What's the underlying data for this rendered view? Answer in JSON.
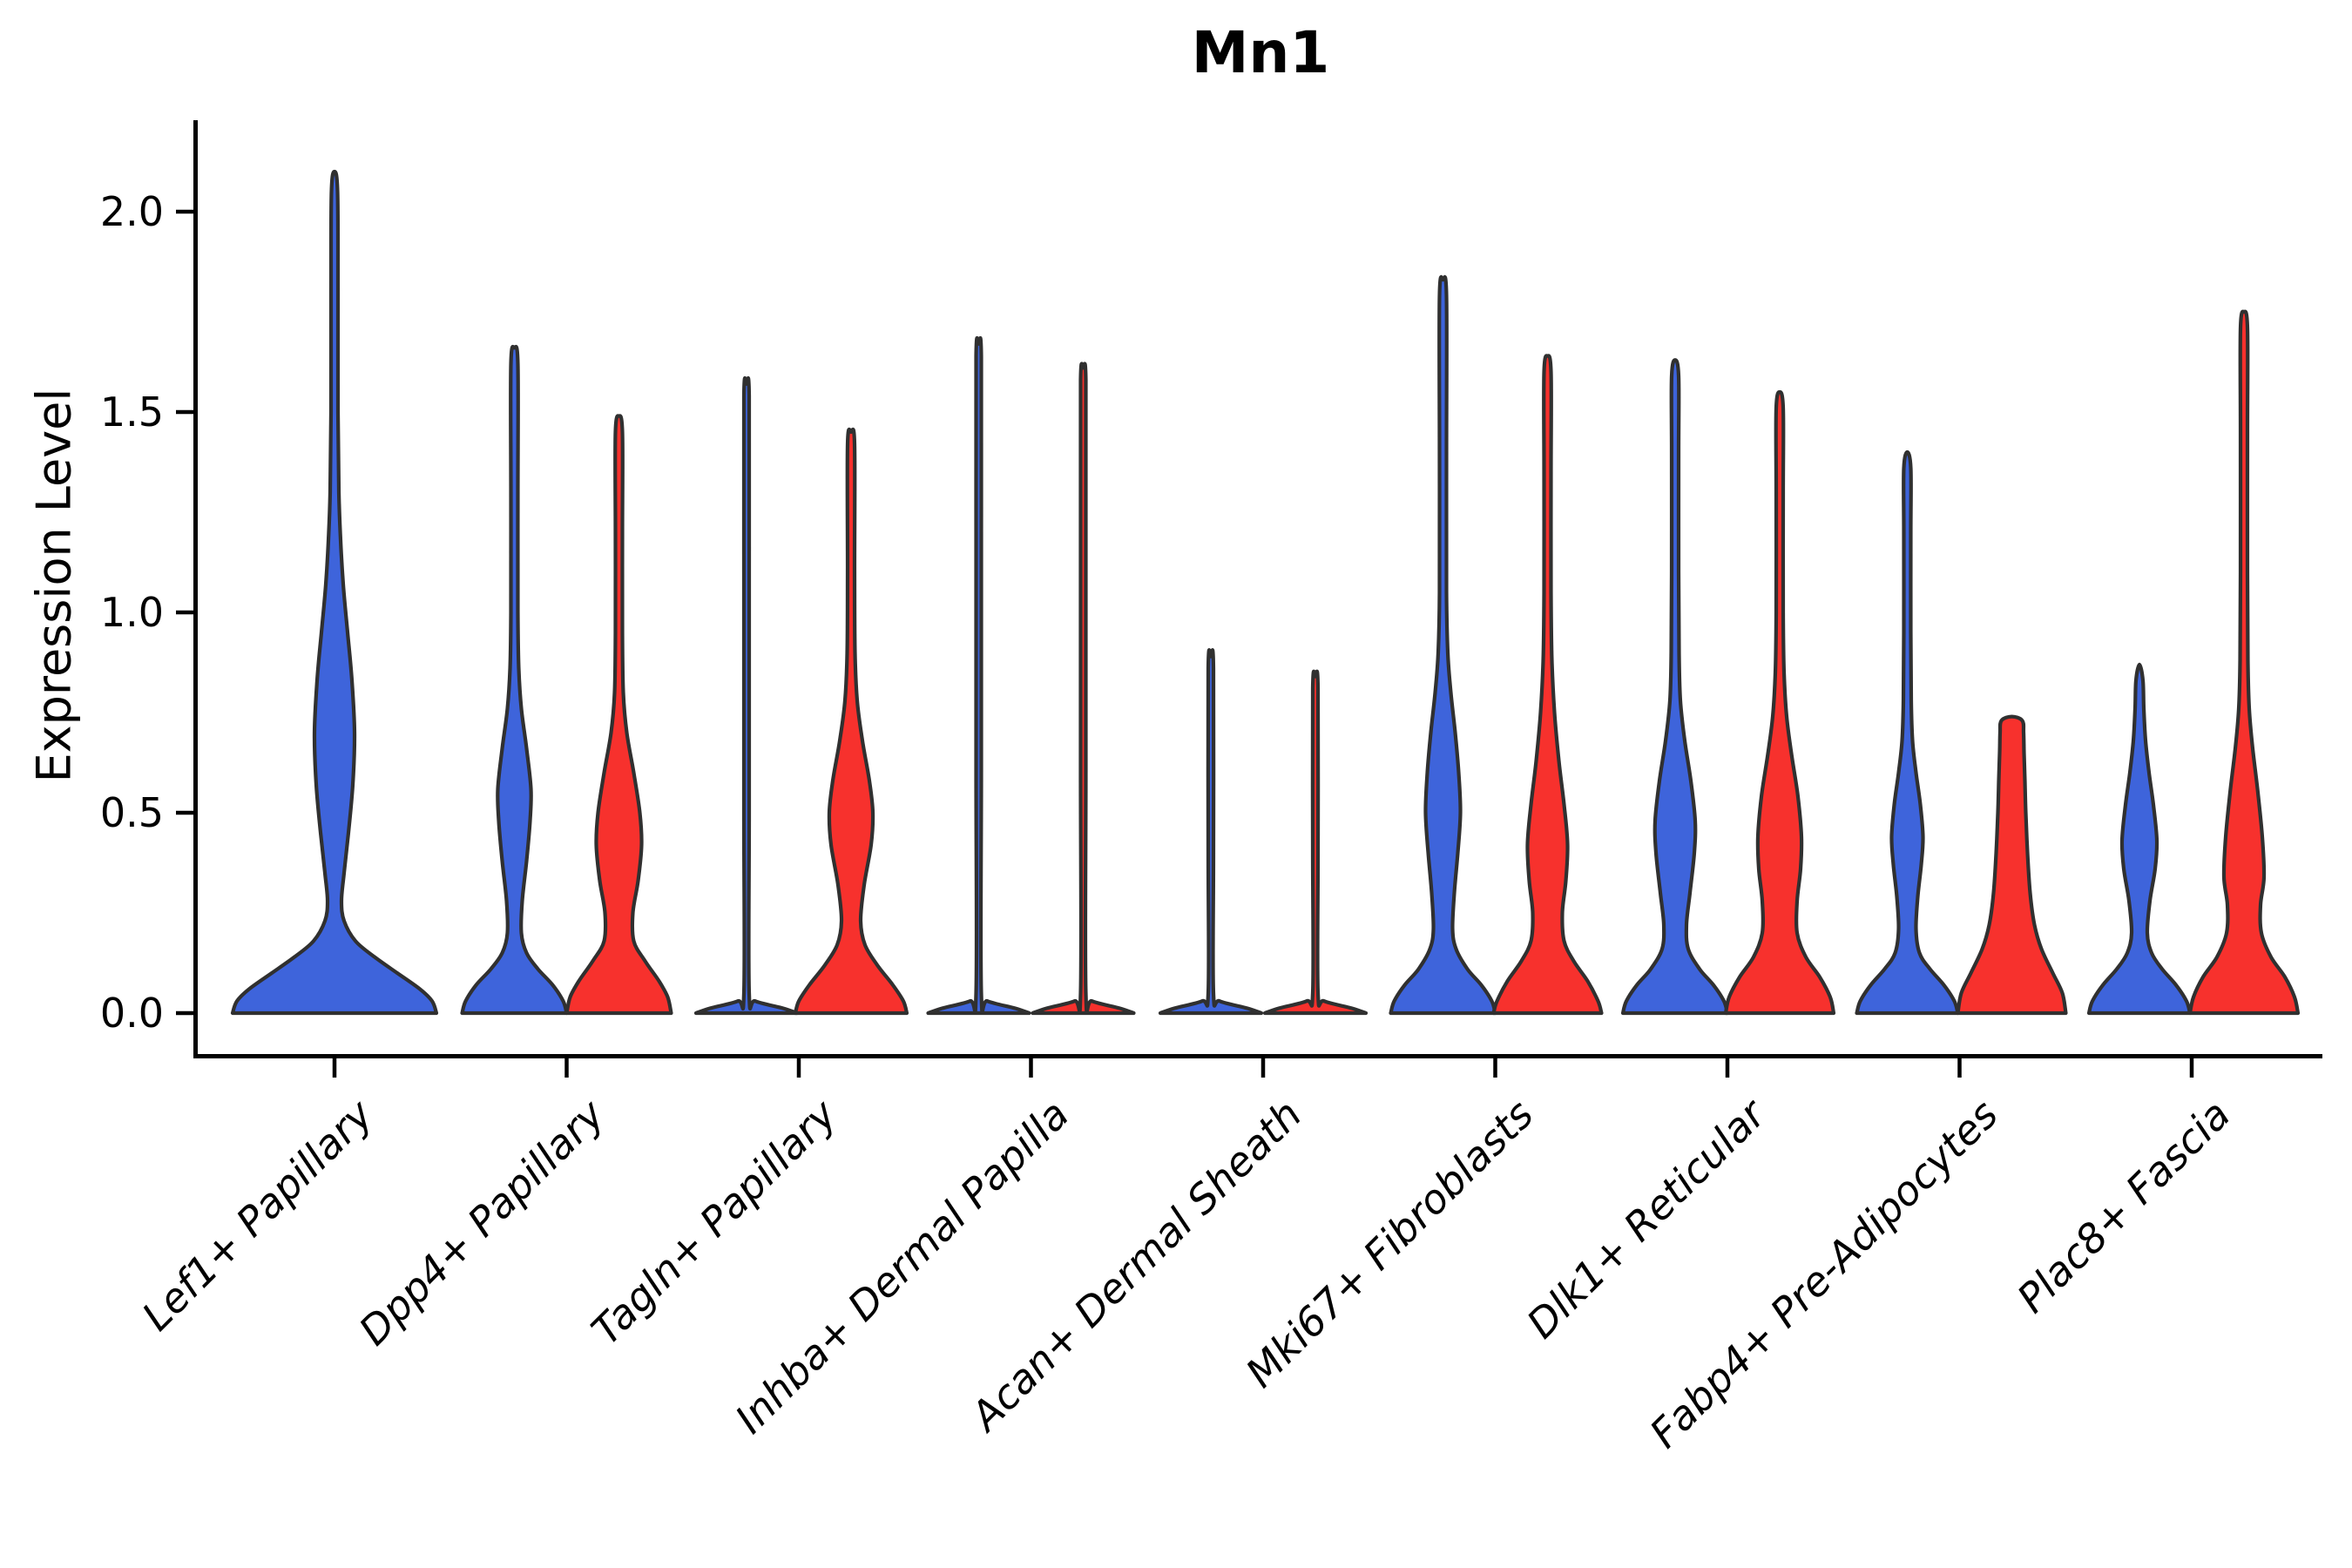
{
  "chart_data": {
    "type": "violin",
    "title": "Mn1",
    "xlabel": "",
    "ylabel": "Expression Level",
    "ylim": [
      -0.1,
      2.23
    ],
    "grid": false,
    "legend": "none",
    "yticks": [
      {
        "label": "0.0",
        "value": 0.0
      },
      {
        "label": "0.5",
        "value": 0.5
      },
      {
        "label": "1.0",
        "value": 1.0
      },
      {
        "label": "1.5",
        "value": 1.5
      },
      {
        "label": "2.0",
        "value": 2.0
      }
    ],
    "categories": [
      "Lef1+ Papillary",
      "Dpp4+ Papillary",
      "Tagln+ Papillary",
      "Inhba+ Dermal Papilla",
      "Acan+ Dermal Sheath",
      "Mki67+ Fibroblasts",
      "Dlk1+ Reticular",
      "Fabp4+ Pre-Adipocytes",
      "Plac8+ Fascia"
    ],
    "colors": {
      "blue": "#3E64DB",
      "red": "#F7312D",
      "outline": "#303030",
      "axis": "#000000"
    },
    "violins": [
      {
        "category_index": 0,
        "category": "Lef1+ Papillary",
        "group": "blue",
        "position": "full",
        "max_expression": 2.1,
        "profile": [
          [
            0,
            117
          ],
          [
            0.03,
            112
          ],
          [
            0.06,
            98
          ],
          [
            0.1,
            72
          ],
          [
            0.14,
            46
          ],
          [
            0.18,
            24
          ],
          [
            0.23,
            11
          ],
          [
            0.28,
            8
          ],
          [
            0.35,
            11
          ],
          [
            0.45,
            16
          ],
          [
            0.57,
            21
          ],
          [
            0.7,
            23
          ],
          [
            0.83,
            20
          ],
          [
            0.95,
            15
          ],
          [
            1.07,
            10
          ],
          [
            1.18,
            7
          ],
          [
            1.3,
            5
          ],
          [
            1.5,
            4
          ],
          [
            1.8,
            4
          ],
          [
            2.05,
            3.5
          ],
          [
            2.1,
            0
          ]
        ]
      },
      {
        "category_index": 1,
        "category": "Dpp4+ Papillary",
        "group": "blue",
        "position": "left",
        "max_expression": 1.66,
        "profile": [
          [
            0,
            60
          ],
          [
            0.03,
            56
          ],
          [
            0.07,
            44
          ],
          [
            0.11,
            27
          ],
          [
            0.15,
            14
          ],
          [
            0.2,
            8
          ],
          [
            0.28,
            9
          ],
          [
            0.38,
            14
          ],
          [
            0.48,
            18
          ],
          [
            0.56,
            19
          ],
          [
            0.66,
            14
          ],
          [
            0.76,
            8
          ],
          [
            0.86,
            5
          ],
          [
            1,
            4
          ],
          [
            1.3,
            4
          ],
          [
            1.62,
            4
          ],
          [
            1.66,
            0
          ]
        ]
      },
      {
        "category_index": 1,
        "category": "Dpp4+ Papillary",
        "group": "red",
        "position": "right",
        "max_expression": 1.49,
        "profile": [
          [
            0,
            60
          ],
          [
            0.04,
            56
          ],
          [
            0.08,
            46
          ],
          [
            0.13,
            30
          ],
          [
            0.18,
            17
          ],
          [
            0.25,
            16
          ],
          [
            0.33,
            22
          ],
          [
            0.42,
            26
          ],
          [
            0.5,
            24
          ],
          [
            0.6,
            17
          ],
          [
            0.7,
            9
          ],
          [
            0.8,
            5
          ],
          [
            0.95,
            4
          ],
          [
            1.2,
            4
          ],
          [
            1.45,
            4
          ],
          [
            1.49,
            0
          ]
        ]
      },
      {
        "category_index": 2,
        "category": "Tagln+ Papillary",
        "group": "blue",
        "position": "left",
        "max_expression": 1.57,
        "profile": [
          [
            0,
            58
          ],
          [
            0.012,
            42
          ],
          [
            0.03,
            10
          ],
          [
            0.05,
            3
          ],
          [
            0.5,
            3
          ],
          [
            1.1,
            3
          ],
          [
            1.54,
            3
          ],
          [
            1.57,
            0
          ]
        ]
      },
      {
        "category_index": 2,
        "category": "Tagln+ Papillary",
        "group": "red",
        "position": "right",
        "max_expression": 1.45,
        "profile": [
          [
            0,
            64
          ],
          [
            0.03,
            60
          ],
          [
            0.07,
            48
          ],
          [
            0.12,
            30
          ],
          [
            0.17,
            16
          ],
          [
            0.23,
            11
          ],
          [
            0.32,
            15
          ],
          [
            0.42,
            23
          ],
          [
            0.5,
            25
          ],
          [
            0.58,
            21
          ],
          [
            0.68,
            13
          ],
          [
            0.78,
            7
          ],
          [
            0.9,
            4.5
          ],
          [
            1.1,
            4
          ],
          [
            1.42,
            4
          ],
          [
            1.45,
            0
          ]
        ]
      },
      {
        "category_index": 3,
        "category": "Inhba+ Dermal Papilla",
        "group": "blue",
        "position": "left",
        "max_expression": 1.67,
        "profile": [
          [
            0,
            58
          ],
          [
            0.012,
            42
          ],
          [
            0.03,
            10
          ],
          [
            0.05,
            3
          ],
          [
            0.6,
            3
          ],
          [
            1.2,
            3
          ],
          [
            1.64,
            3
          ],
          [
            1.67,
            0
          ]
        ]
      },
      {
        "category_index": 3,
        "category": "Inhba+ Dermal Papilla",
        "group": "red",
        "position": "right",
        "max_expression": 1.61,
        "profile": [
          [
            0,
            58
          ],
          [
            0.012,
            42
          ],
          [
            0.03,
            10
          ],
          [
            0.05,
            3
          ],
          [
            0.6,
            3
          ],
          [
            1.2,
            3
          ],
          [
            1.58,
            3
          ],
          [
            1.61,
            0
          ]
        ]
      },
      {
        "category_index": 4,
        "category": "Acan+ Dermal Sheath",
        "group": "blue",
        "position": "left",
        "max_expression": 0.89,
        "profile": [
          [
            0,
            58
          ],
          [
            0.012,
            42
          ],
          [
            0.03,
            10
          ],
          [
            0.05,
            3
          ],
          [
            0.4,
            3
          ],
          [
            0.86,
            3
          ],
          [
            0.89,
            0
          ]
        ]
      },
      {
        "category_index": 4,
        "category": "Acan+ Dermal Sheath",
        "group": "red",
        "position": "right",
        "max_expression": 0.84,
        "profile": [
          [
            0,
            58
          ],
          [
            0.012,
            42
          ],
          [
            0.03,
            10
          ],
          [
            0.05,
            3
          ],
          [
            0.4,
            3
          ],
          [
            0.81,
            3
          ],
          [
            0.84,
            0
          ]
        ]
      },
      {
        "category_index": 5,
        "category": "Mki67+ Fibroblasts",
        "group": "blue",
        "position": "left",
        "max_expression": 1.83,
        "profile": [
          [
            0,
            60
          ],
          [
            0.03,
            56
          ],
          [
            0.07,
            44
          ],
          [
            0.11,
            28
          ],
          [
            0.16,
            15
          ],
          [
            0.21,
            11
          ],
          [
            0.3,
            13
          ],
          [
            0.4,
            17
          ],
          [
            0.5,
            20
          ],
          [
            0.6,
            18
          ],
          [
            0.7,
            14
          ],
          [
            0.8,
            9
          ],
          [
            0.9,
            5.5
          ],
          [
            1.05,
            4
          ],
          [
            1.4,
            4
          ],
          [
            1.79,
            4
          ],
          [
            1.83,
            0
          ]
        ]
      },
      {
        "category_index": 5,
        "category": "Mki67+ Fibroblasts",
        "group": "red",
        "position": "right",
        "max_expression": 1.64,
        "profile": [
          [
            0,
            62
          ],
          [
            0.03,
            58
          ],
          [
            0.08,
            46
          ],
          [
            0.13,
            30
          ],
          [
            0.18,
            19
          ],
          [
            0.25,
            17
          ],
          [
            0.33,
            21
          ],
          [
            0.42,
            23
          ],
          [
            0.52,
            19
          ],
          [
            0.63,
            13
          ],
          [
            0.75,
            8
          ],
          [
            0.88,
            5
          ],
          [
            1.05,
            4
          ],
          [
            1.35,
            4
          ],
          [
            1.6,
            4
          ],
          [
            1.64,
            0
          ]
        ]
      },
      {
        "category_index": 6,
        "category": "Dlk1+ Reticular",
        "group": "blue",
        "position": "left",
        "max_expression": 1.63,
        "profile": [
          [
            0,
            60
          ],
          [
            0.03,
            56
          ],
          [
            0.07,
            44
          ],
          [
            0.11,
            28
          ],
          [
            0.16,
            15
          ],
          [
            0.22,
            13
          ],
          [
            0.3,
            17
          ],
          [
            0.4,
            22
          ],
          [
            0.48,
            23
          ],
          [
            0.58,
            18
          ],
          [
            0.68,
            11
          ],
          [
            0.78,
            6
          ],
          [
            0.9,
            4.5
          ],
          [
            1.1,
            4
          ],
          [
            1.4,
            4
          ],
          [
            1.59,
            4
          ],
          [
            1.63,
            0
          ]
        ]
      },
      {
        "category_index": 6,
        "category": "Dlk1+ Reticular",
        "group": "red",
        "position": "right",
        "max_expression": 1.55,
        "profile": [
          [
            0,
            62
          ],
          [
            0.04,
            58
          ],
          [
            0.09,
            46
          ],
          [
            0.14,
            30
          ],
          [
            0.2,
            20
          ],
          [
            0.28,
            20
          ],
          [
            0.36,
            24
          ],
          [
            0.44,
            25
          ],
          [
            0.54,
            21
          ],
          [
            0.64,
            14
          ],
          [
            0.74,
            8
          ],
          [
            0.85,
            5
          ],
          [
            1,
            4
          ],
          [
            1.3,
            4
          ],
          [
            1.51,
            4
          ],
          [
            1.55,
            0
          ]
        ]
      },
      {
        "category_index": 7,
        "category": "Fabp4+ Pre-Adipocytes",
        "group": "blue",
        "position": "left",
        "max_expression": 1.4,
        "profile": [
          [
            0,
            58
          ],
          [
            0.03,
            54
          ],
          [
            0.07,
            42
          ],
          [
            0.11,
            26
          ],
          [
            0.15,
            14
          ],
          [
            0.21,
            10
          ],
          [
            0.29,
            12
          ],
          [
            0.37,
            16
          ],
          [
            0.44,
            18
          ],
          [
            0.52,
            15
          ],
          [
            0.6,
            10
          ],
          [
            0.68,
            6
          ],
          [
            0.78,
            4.5
          ],
          [
            0.95,
            4
          ],
          [
            1.2,
            4
          ],
          [
            1.36,
            4
          ],
          [
            1.4,
            0
          ]
        ]
      },
      {
        "category_index": 7,
        "category": "Fabp4+ Pre-Adipocytes",
        "group": "red",
        "position": "right",
        "max_expression": 0.74,
        "profile": [
          [
            0,
            62
          ],
          [
            0.05,
            58
          ],
          [
            0.1,
            47
          ],
          [
            0.16,
            34
          ],
          [
            0.22,
            26
          ],
          [
            0.3,
            21
          ],
          [
            0.4,
            18
          ],
          [
            0.5,
            16
          ],
          [
            0.58,
            15
          ],
          [
            0.65,
            14
          ],
          [
            0.7,
            13.5
          ],
          [
            0.73,
            12
          ],
          [
            0.74,
            0
          ]
        ]
      },
      {
        "category_index": 8,
        "category": "Plac8+ Fascia",
        "group": "blue",
        "position": "left",
        "max_expression": 0.87,
        "profile": [
          [
            0,
            58
          ],
          [
            0.03,
            54
          ],
          [
            0.07,
            42
          ],
          [
            0.11,
            26
          ],
          [
            0.15,
            14
          ],
          [
            0.2,
            9
          ],
          [
            0.28,
            12
          ],
          [
            0.36,
            18
          ],
          [
            0.43,
            20
          ],
          [
            0.52,
            16
          ],
          [
            0.6,
            11
          ],
          [
            0.68,
            7
          ],
          [
            0.76,
            5
          ],
          [
            0.83,
            4
          ],
          [
            0.87,
            0
          ]
        ]
      },
      {
        "category_index": 8,
        "category": "Plac8+ Fascia",
        "group": "red",
        "position": "right",
        "max_expression": 1.75,
        "profile": [
          [
            0,
            62
          ],
          [
            0.04,
            58
          ],
          [
            0.09,
            47
          ],
          [
            0.14,
            31
          ],
          [
            0.2,
            20
          ],
          [
            0.27,
            19
          ],
          [
            0.34,
            23
          ],
          [
            0.44,
            21
          ],
          [
            0.55,
            16
          ],
          [
            0.66,
            10
          ],
          [
            0.76,
            6
          ],
          [
            0.88,
            4.5
          ],
          [
            1.1,
            4
          ],
          [
            1.45,
            4
          ],
          [
            1.71,
            4
          ],
          [
            1.75,
            0
          ]
        ]
      }
    ]
  }
}
